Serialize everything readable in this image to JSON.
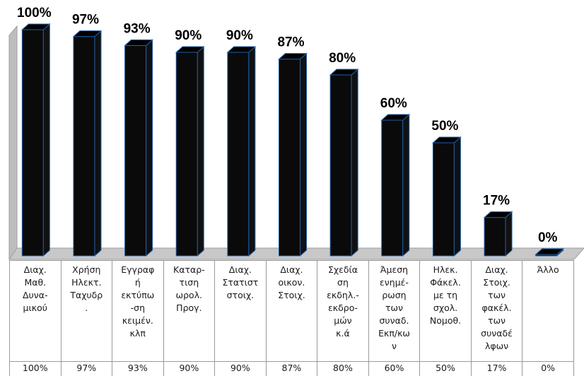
{
  "chart_data": {
    "type": "bar",
    "categories": [
      "Διαχ.\nΜαθ.\nΔυνα-\nμικού",
      "Χρήση\nΗλεκτ.\nΤαχυδρ\n.",
      "Εγγραφ\nή\nεκτύπω\n-ση\nκειμέν.\nκλπ",
      "Καταρ-\nτιση\nωρολ.\nΠρογ.",
      "Διαχ.\nΣτατιστ\nστοιχ.",
      "Διαχ.\nοικον.\nΣτοιχ.",
      "Σχεδία\nση\nεκδηλ.-\nεκδρο-\nμών\nκ.ά",
      "Άμεση\nενημέ-\nρωση\nτων\nσυναδ.\nΕκπ/κω\nν",
      "Ηλεκ.\nΦάκελ.\nμε τη\nσχολ.\nΝομοθ.",
      "Διαχ.\nΣτοιχ.\nτων\nφακέλ.\nτων\nσυναδέ\nλφων",
      "Άλλο"
    ],
    "values": [
      100,
      97,
      93,
      90,
      90,
      87,
      80,
      60,
      50,
      17,
      0
    ],
    "labels": [
      "100%",
      "97%",
      "93%",
      "90%",
      "90%",
      "87%",
      "80%",
      "60%",
      "50%",
      "17%",
      "0%"
    ],
    "ylim": [
      0,
      100
    ],
    "grid": false,
    "legend": "none",
    "colors": {
      "bar": "#0a0a0a",
      "bar_edge": "#1f5fa8",
      "wall": "#bdbdbd",
      "floor": "#c8c8c8"
    }
  }
}
